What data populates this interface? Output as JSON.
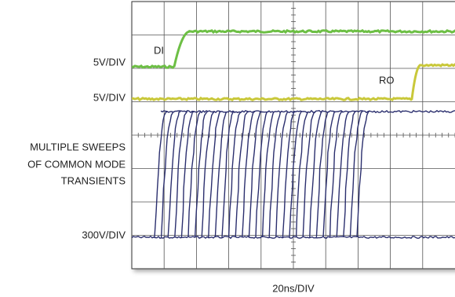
{
  "labels": {
    "di_scale": "5V/DIV",
    "ro_scale": "5V/DIV",
    "cm_note": [
      "MULTIPLE SWEEPS",
      "OF COMMON MODE",
      "TRANSIENTS"
    ],
    "cm_scale": "300V/DIV",
    "time_scale": "20ns/DIV",
    "di": "DI",
    "ro": "RO"
  }
}
